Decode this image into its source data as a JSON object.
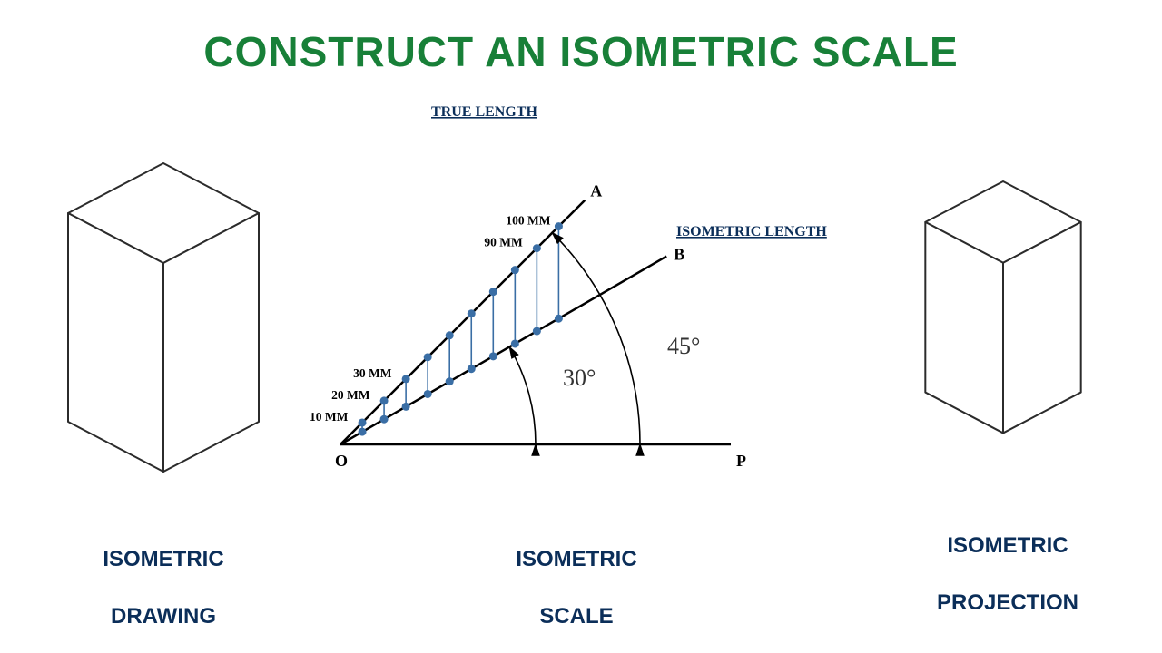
{
  "title": {
    "text": "CONSTRUCT AN ISOMETRIC SCALE",
    "color": "#188038",
    "fontsize": 46
  },
  "caption_color": "#0b2e59",
  "caption_fontsize": 24,
  "left_panel": {
    "caption_line1": "ISOMETRIC",
    "caption_line2": "DRAWING",
    "stroke": "#2b2b2b",
    "stroke_width": 2
  },
  "right_panel": {
    "caption_line1": "ISOMETRIC",
    "caption_line2": "PROJECTION",
    "stroke": "#2b2b2b",
    "stroke_width": 2
  },
  "center_panel": {
    "caption_line1": "ISOMETRIC",
    "caption_line2": "SCALE",
    "true_length_label": "TRUE LENGTH",
    "isometric_length_label": "ISOMETRIC LENGTH",
    "point_O": "O",
    "point_P": "P",
    "point_A": "A",
    "point_B": "B",
    "angle30_label": "30°",
    "angle45_label": "45°",
    "mm_labels": {
      "l10": "10 MM",
      "l20": "20 MM",
      "l30": "30 MM",
      "l90": "90 MM",
      "l100": "100 MM"
    },
    "line_color": "#000000",
    "line_width": 2.5,
    "ladder_color": "#3a6ea5",
    "dot_color": "#3a6ea5",
    "dot_radius": 4.5,
    "divisions": 10,
    "true_line_len": 340,
    "true_angle_deg": 45,
    "iso_angle_deg": 30,
    "label_color": "#0b2e59",
    "angle_text_color": "#333333",
    "angle_text_fontsize": 26,
    "mm_fontsize": 13.5,
    "header_fontsize": 16,
    "point_fontsize": 18
  }
}
